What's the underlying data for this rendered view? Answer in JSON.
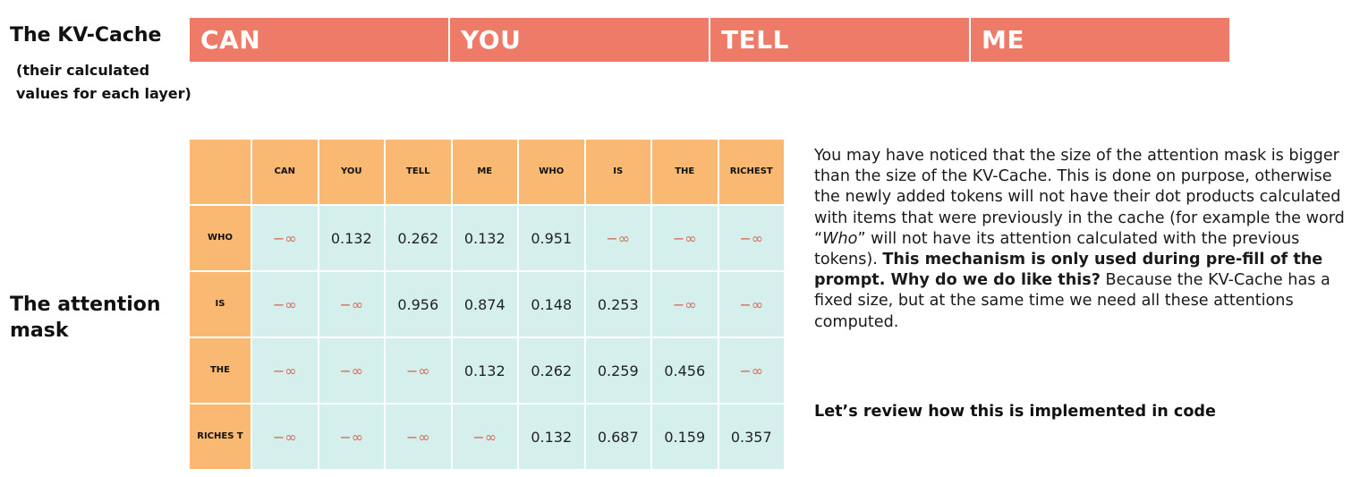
{
  "kv_cache": {
    "title": "The KV-Cache",
    "subtitle": "(their calculated values for each layer)",
    "tokens": [
      "CAN",
      "YOU",
      "TELL",
      "ME"
    ],
    "color": "#ee7a68"
  },
  "attention_mask": {
    "title": "The attention mask",
    "columns": [
      "CAN",
      "YOU",
      "TELL",
      "ME",
      "WHO",
      "IS",
      "THE",
      "RICHEST"
    ],
    "rows": [
      {
        "label": "WHO",
        "values": [
          "−∞",
          "0.132",
          "0.262",
          "0.132",
          "0.951",
          "−∞",
          "−∞",
          "−∞"
        ]
      },
      {
        "label": "IS",
        "values": [
          "−∞",
          "−∞",
          "0.956",
          "0.874",
          "0.148",
          "0.253",
          "−∞",
          "−∞"
        ]
      },
      {
        "label": "THE",
        "values": [
          "−∞",
          "−∞",
          "−∞",
          "0.132",
          "0.262",
          "0.259",
          "0.456",
          "−∞"
        ]
      },
      {
        "label": "RICHES T",
        "values": [
          "−∞",
          "−∞",
          "−∞",
          "−∞",
          "0.132",
          "0.687",
          "0.159",
          "0.357"
        ]
      }
    ],
    "header_color": "#f9b972",
    "cell_color": "#d5f0ec"
  },
  "explanation": {
    "p1": "You may have noticed that the size of the attention mask is bigger than the size of the KV-Cache. This is done on purpose, otherwise the newly added tokens will not have their dot products calculated with items that were previously in the cache (for example the word “",
    "p1_italic": "Who",
    "p1_end": "” will not have its attention calculated with the previous tokens). ",
    "bold1": "This mechanism is only used during pre-fill of the prompt. Why do we do like this?",
    "p2": " Because the KV-Cache has a fixed size, but at the same time we need all these attentions computed.",
    "cta": "Let’s review how this is implemented in code"
  }
}
